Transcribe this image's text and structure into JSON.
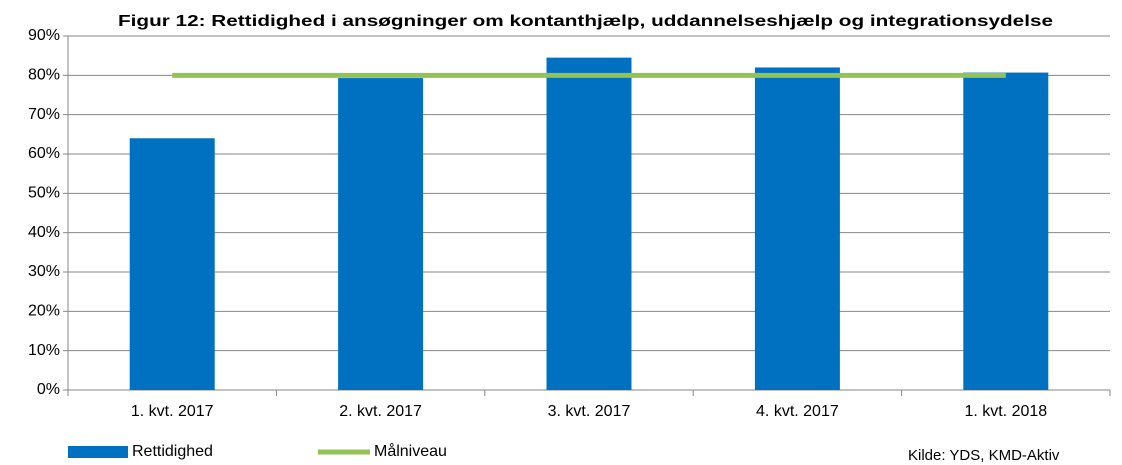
{
  "chart_data": {
    "type": "bar",
    "title": "Figur 12: Rettidighed i ansøgninger om kontanthjælp, uddannelseshjælp og integrationsydelse",
    "categories": [
      "1. kvt. 2017",
      "2. kvt. 2017",
      "3. kvt. 2017",
      "4. kvt. 2017",
      "1. kvt. 2018"
    ],
    "series": [
      {
        "name": "Rettidighed",
        "type": "bar",
        "color": "#0070c0",
        "values": [
          64,
          79.3,
          84.5,
          82,
          80.7
        ]
      },
      {
        "name": "Målniveau",
        "type": "line",
        "color": "#92c353",
        "values": [
          80,
          80,
          80,
          80,
          80
        ]
      }
    ],
    "ylim": [
      0,
      90
    ],
    "yticks": [
      {
        "value": 0,
        "label": "0%"
      },
      {
        "value": 10,
        "label": "10%"
      },
      {
        "value": 20,
        "label": "20%"
      },
      {
        "value": 30,
        "label": "30%"
      },
      {
        "value": 40,
        "label": "40%"
      },
      {
        "value": 50,
        "label": "50%"
      },
      {
        "value": 60,
        "label": "60%"
      },
      {
        "value": 70,
        "label": "70%"
      },
      {
        "value": 80,
        "label": "80%"
      },
      {
        "value": 90,
        "label": "90%"
      }
    ],
    "grid": true,
    "legend": "bottom",
    "source": "Kilde: YDS, KMD-Aktiv"
  }
}
